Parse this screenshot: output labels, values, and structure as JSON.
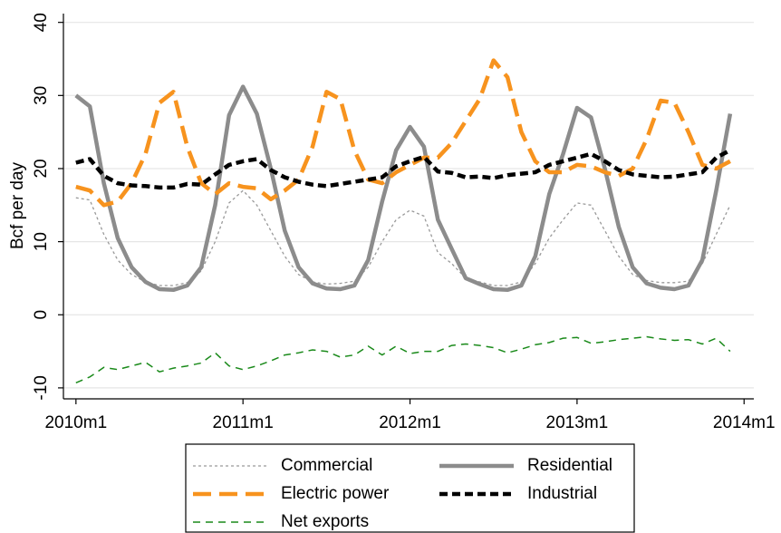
{
  "chart_data": {
    "type": "line",
    "y_label": "Bcf per day",
    "x": [
      600,
      601,
      602,
      603,
      604,
      605,
      606,
      607,
      608,
      609,
      610,
      611,
      612,
      613,
      614,
      615,
      616,
      617,
      618,
      619,
      620,
      621,
      622,
      623,
      624,
      625,
      626,
      627,
      628,
      629,
      630,
      631,
      632,
      633,
      634,
      635,
      636,
      637,
      638,
      639,
      640,
      641,
      642,
      643,
      644,
      645,
      646,
      647
    ],
    "xlim": [
      599.1,
      648.7
    ],
    "xticks": [
      {
        "value": 600,
        "label": "2010m1"
      },
      {
        "value": 612,
        "label": "2011m1"
      },
      {
        "value": 624,
        "label": "2012m1"
      },
      {
        "value": 636,
        "label": "2013m1"
      },
      {
        "value": 648,
        "label": "2014m1"
      }
    ],
    "ylim": [
      -11.5,
      41.2
    ],
    "yticks": [
      -10,
      0,
      10,
      20,
      30,
      40
    ],
    "grid": true,
    "legend": "bottom",
    "series": [
      {
        "name": "Commercial",
        "color": "#999999",
        "style": "dot",
        "values": [
          16,
          15.7,
          11,
          7.5,
          5.5,
          4.5,
          4,
          4,
          4.4,
          6,
          10,
          15.3,
          17,
          15,
          11.5,
          8,
          5.5,
          4.5,
          4.2,
          4.3,
          4.6,
          6.5,
          10,
          13,
          14.3,
          13.5,
          8.5,
          7,
          5,
          4.5,
          4,
          4,
          4.5,
          7,
          10.5,
          13,
          15.3,
          15,
          11.5,
          8,
          5.5,
          4.7,
          4.4,
          4.4,
          4.6,
          7,
          11,
          15
        ]
      },
      {
        "name": "Residential",
        "color": "#8c8c8c",
        "style": "solid",
        "values": [
          30,
          28.5,
          18,
          10.5,
          6.5,
          4.5,
          3.5,
          3.4,
          4,
          6.5,
          15,
          27.3,
          31.2,
          27.5,
          20,
          11.5,
          6.5,
          4.3,
          3.6,
          3.5,
          4,
          7.5,
          15.5,
          22.5,
          25.7,
          23,
          13,
          9,
          5,
          4.2,
          3.5,
          3.4,
          4,
          8,
          16.5,
          22,
          28.3,
          27,
          20,
          12,
          6.5,
          4.3,
          3.7,
          3.5,
          4,
          7.5,
          17,
          27.5
        ]
      },
      {
        "name": "Electric power",
        "color": "#f7931e",
        "style": "longdash",
        "values": [
          17.5,
          17,
          15,
          15.5,
          18,
          22,
          29,
          30.5,
          23,
          18,
          16.5,
          18,
          17.5,
          17.3,
          15.8,
          17,
          18.5,
          23,
          30.5,
          29.5,
          22.5,
          18.5,
          18,
          19.5,
          20.5,
          21.5,
          21.5,
          23.5,
          26.5,
          29.5,
          34.8,
          32.5,
          25,
          21,
          19.5,
          19.5,
          20.5,
          20.3,
          19.5,
          19,
          20,
          24,
          29.3,
          29,
          25,
          20.5,
          20,
          21
        ]
      },
      {
        "name": "Industrial",
        "color": "#000000",
        "style": "dash",
        "values": [
          20.8,
          21.3,
          19,
          18,
          17.7,
          17.6,
          17.4,
          17.4,
          17.9,
          17.8,
          19.2,
          20.5,
          21,
          21.3,
          19.8,
          18.8,
          18.2,
          17.8,
          17.6,
          17.9,
          18.2,
          18.5,
          18.8,
          20.3,
          21,
          21.6,
          19.6,
          19.4,
          18.8,
          18.9,
          18.7,
          19.1,
          19.3,
          19.5,
          20.5,
          21,
          21.5,
          22,
          21,
          19.8,
          19.2,
          19,
          18.8,
          18.9,
          19.2,
          19.5,
          21.5,
          22.5
        ]
      },
      {
        "name": "Net exports",
        "color": "#1a8a1a",
        "style": "shortdash",
        "values": [
          -9.3,
          -8.5,
          -7.2,
          -7.5,
          -7,
          -6.5,
          -7.8,
          -7.3,
          -7,
          -6.6,
          -5.2,
          -7,
          -7.5,
          -7,
          -6.3,
          -5.5,
          -5.2,
          -4.8,
          -5,
          -5.8,
          -5.5,
          -4.3,
          -5.5,
          -4.3,
          -5.3,
          -5,
          -5,
          -4.2,
          -4,
          -4.2,
          -4.5,
          -5.2,
          -4.7,
          -4.1,
          -3.8,
          -3.2,
          -3.1,
          -3.9,
          -3.7,
          -3.4,
          -3.2,
          -3,
          -3.3,
          -3.5,
          -3.4,
          -4,
          -3.2,
          -5
        ]
      }
    ]
  }
}
